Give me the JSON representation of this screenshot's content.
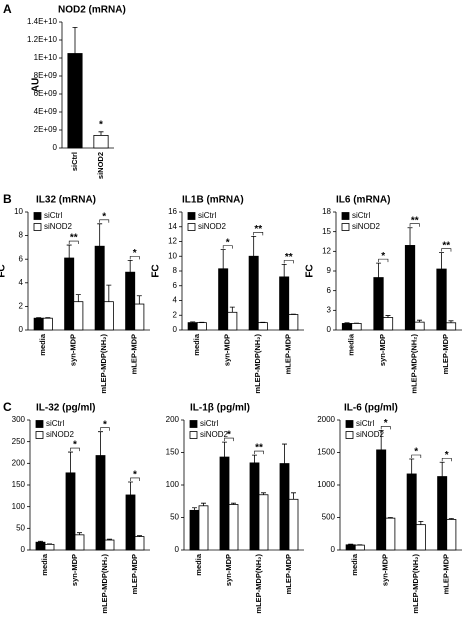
{
  "chart_data": [
    {
      "type": "bar",
      "panel": "A",
      "title": "NOD2 (mRNA)",
      "ylabel": "AU",
      "categories": [
        "siCtrl",
        "siNOD2"
      ],
      "values": [
        10500000000,
        1400000000
      ],
      "errors": [
        2900000000,
        400000000
      ],
      "colors": [
        "#000000",
        "#ffffff"
      ],
      "significance": [
        null,
        "*"
      ],
      "ylim": [
        0,
        14000000000
      ],
      "yticks": [
        0,
        {
          "value": 2000000000,
          "label": "2E+09"
        },
        {
          "value": 4000000000,
          "label": "4E+09"
        },
        {
          "value": 6000000000,
          "label": "6E+09"
        },
        {
          "value": 8000000000,
          "label": "8E+09"
        },
        {
          "value": 10000000000,
          "label": "1E+10"
        },
        {
          "value": 12000000000,
          "label": "1.2E+10"
        },
        {
          "value": 14000000000,
          "label": "1.4E+10"
        }
      ]
    },
    {
      "type": "bar",
      "panel": "B",
      "title": "IL32 (mRNA)",
      "ylabel": "FC",
      "legend": "top-left",
      "categories": [
        "media",
        "syn-MDP",
        "mLEP-MDP(NH₂)",
        "mLEP-MDP"
      ],
      "series": [
        {
          "name": "siCtrl",
          "color": "#000000",
          "values": [
            1,
            6.1,
            7.1,
            4.9
          ],
          "errors": [
            0.05,
            1.1,
            1.9,
            1.0
          ]
        },
        {
          "name": "siNOD2",
          "color": "#ffffff",
          "values": [
            1,
            2.4,
            2.4,
            2.2
          ],
          "errors": [
            0.05,
            0.6,
            1.4,
            0.7
          ]
        }
      ],
      "significance": [
        null,
        "**",
        "*",
        "*"
      ],
      "ylim": [
        0,
        10
      ],
      "yticks": [
        0,
        2,
        4,
        6,
        8,
        10
      ]
    },
    {
      "type": "bar",
      "title": "IL1B (mRNA)",
      "ylabel": "FC",
      "legend": "top-left",
      "categories": [
        "media",
        "syn-MDP",
        "mLEP-MDP(NH₂)",
        "mLEP-MDP"
      ],
      "series": [
        {
          "name": "siCtrl",
          "color": "#000000",
          "values": [
            1,
            8.3,
            10,
            7.2
          ],
          "errors": [
            0.1,
            2.6,
            2.7,
            1.7
          ]
        },
        {
          "name": "siNOD2",
          "color": "#ffffff",
          "values": [
            1,
            2.4,
            1,
            2.1
          ],
          "errors": [
            0.05,
            0.7,
            0.05,
            0.05
          ]
        }
      ],
      "significance": [
        null,
        "*",
        "**",
        "**"
      ],
      "ylim": [
        0,
        16
      ],
      "yticks": [
        0,
        2,
        4,
        6,
        8,
        10,
        12,
        14,
        16
      ]
    },
    {
      "type": "bar",
      "title": "IL6 (mRNA)",
      "ylabel": "FC",
      "legend": "top-left",
      "categories": [
        "media",
        "syn-MDP",
        "mLEP-MDP(NH₂)",
        "mLEP-MDP"
      ],
      "series": [
        {
          "name": "siCtrl",
          "color": "#000000",
          "values": [
            1,
            8,
            12.9,
            9.3
          ],
          "errors": [
            0.1,
            2.2,
            2.7,
            2.5
          ]
        },
        {
          "name": "siNOD2",
          "color": "#ffffff",
          "values": [
            1,
            1.9,
            1.2,
            1.1
          ],
          "errors": [
            0.05,
            0.3,
            0.3,
            0.3
          ]
        }
      ],
      "significance": [
        null,
        "*",
        "**",
        "**"
      ],
      "ylim": [
        0,
        18
      ],
      "yticks": [
        0,
        3,
        6,
        9,
        12,
        15,
        18
      ]
    },
    {
      "type": "bar",
      "panel": "C",
      "title": "IL-32 (pg/ml)",
      "legend": "top-left",
      "categories": [
        "media",
        "syn-MDP",
        "mLEP-MDP(NH₂)",
        "mLEP-MDP"
      ],
      "series": [
        {
          "name": "siCtrl",
          "color": "#000000",
          "values": [
            18,
            178,
            218,
            127
          ],
          "errors": [
            2,
            48,
            55,
            30
          ]
        },
        {
          "name": "siNOD2",
          "color": "#ffffff",
          "values": [
            13,
            35,
            23,
            31
          ],
          "errors": [
            1,
            5,
            2,
            2
          ]
        }
      ],
      "significance": [
        null,
        "*",
        "*",
        "*"
      ],
      "ylim": [
        0,
        300
      ],
      "yticks": [
        0,
        50,
        100,
        150,
        200,
        250,
        300
      ]
    },
    {
      "type": "bar",
      "title": "IL-1β (pg/ml)",
      "legend": "top-left",
      "categories": [
        "media",
        "syn-MDP",
        "mLEP-MDP(NH₂)",
        "mLEP-MDP"
      ],
      "series": [
        {
          "name": "siCtrl",
          "color": "#000000",
          "values": [
            61,
            143,
            134,
            133
          ],
          "errors": [
            4,
            23,
            12,
            30
          ]
        },
        {
          "name": "siNOD2",
          "color": "#ffffff",
          "values": [
            68,
            70,
            85,
            78
          ],
          "errors": [
            4,
            2,
            3,
            10
          ]
        }
      ],
      "significance": [
        null,
        "*",
        "**",
        null
      ],
      "ylim": [
        0,
        200
      ],
      "yticks": [
        0,
        50,
        100,
        150,
        200
      ]
    },
    {
      "type": "bar",
      "title": "IL-6 (pg/ml)",
      "legend": "top-left",
      "categories": [
        "media",
        "syn-MDP",
        "mLEP-MDP(NH₂)",
        "mLEP-MDP"
      ],
      "series": [
        {
          "name": "siCtrl",
          "color": "#000000",
          "values": [
            80,
            1540,
            1170,
            1130
          ],
          "errors": [
            10,
            300,
            230,
            220
          ]
        },
        {
          "name": "siNOD2",
          "color": "#ffffff",
          "values": [
            75,
            490,
            390,
            470
          ],
          "errors": [
            5,
            10,
            50,
            15
          ]
        }
      ],
      "significance": [
        null,
        "*",
        "*",
        "*"
      ],
      "ylim": [
        0,
        2000
      ],
      "yticks": [
        0,
        500,
        1000,
        1500,
        2000
      ]
    }
  ]
}
